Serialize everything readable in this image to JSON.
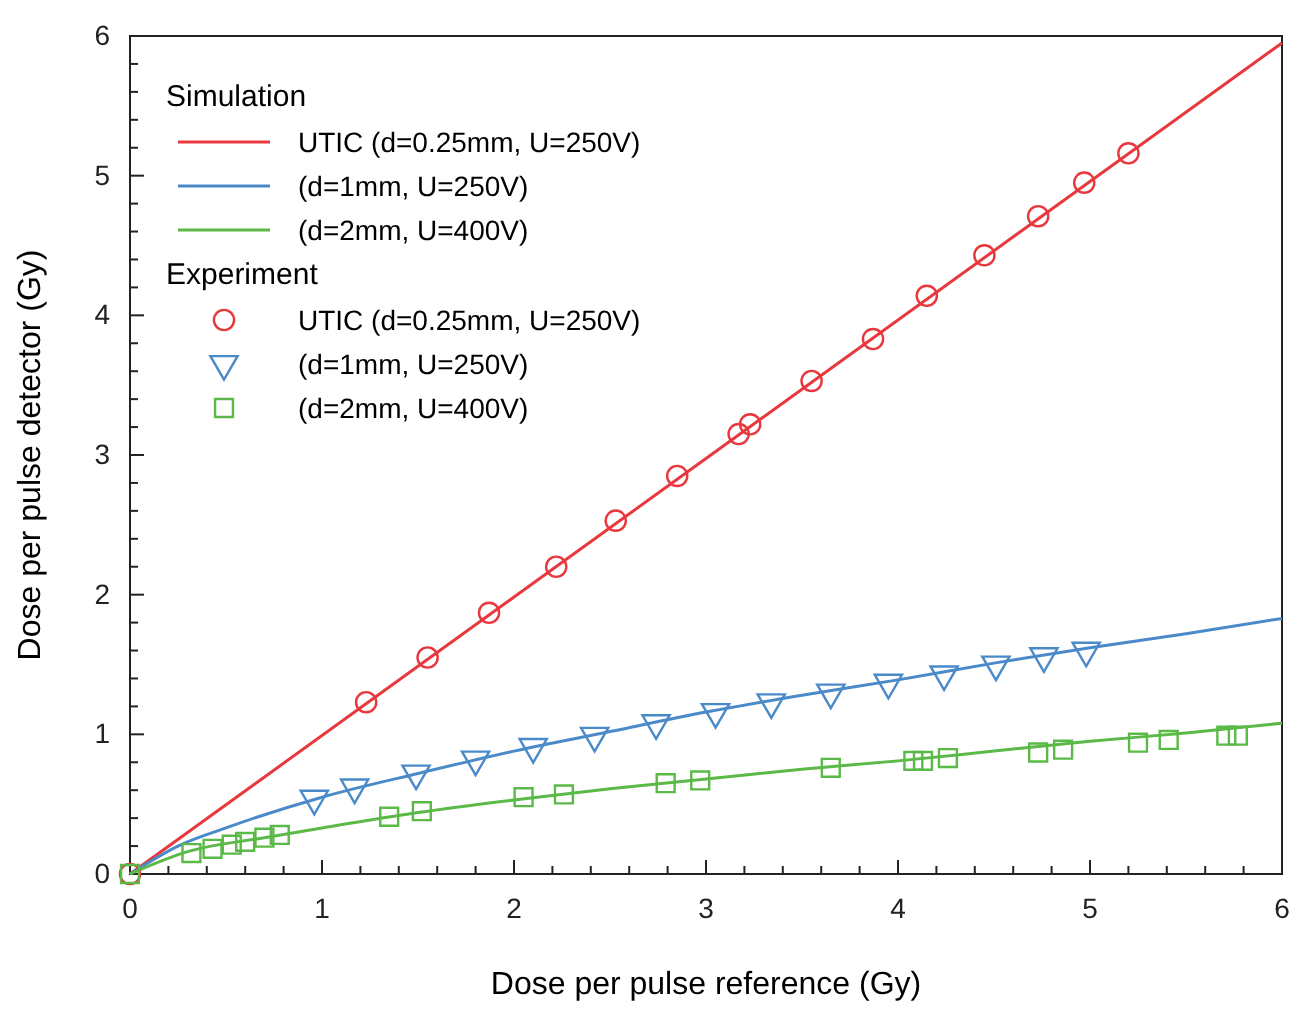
{
  "chart_data": {
    "type": "line",
    "xlabel": "Dose per pulse reference (Gy)",
    "ylabel": "Dose per pulse detector (Gy)",
    "legend_title": "Simulation",
    "annotations": [
      "Experiment"
    ],
    "xlim": [
      0,
      6
    ],
    "ylim": [
      0,
      6
    ],
    "xticks": [
      0,
      1,
      2,
      3,
      4,
      5,
      6
    ],
    "yticks": [
      0,
      1,
      2,
      3,
      4,
      5,
      6
    ],
    "grid": false,
    "legend": "top left",
    "series": [
      {
        "name": "UTIC (d=0.25mm, U=250V)",
        "color": "#e8383d",
        "marker": "none",
        "x": [
          0,
          6
        ],
        "values": [
          0,
          5.95
        ]
      },
      {
        "name": "(d=1mm, U=250V)",
        "color": "#4a8ac9",
        "marker": "none",
        "x": [
          0,
          0.25,
          0.5,
          1,
          1.5,
          2,
          2.5,
          3,
          3.5,
          4,
          4.5,
          5,
          5.5,
          6
        ],
        "values": [
          0,
          0.2,
          0.33,
          0.55,
          0.72,
          0.88,
          1.02,
          1.16,
          1.28,
          1.39,
          1.51,
          1.62,
          1.72,
          1.83
        ]
      },
      {
        "name": "(d=2mm, U=400V)",
        "color": "#5ab947",
        "marker": "none",
        "x": [
          0,
          0.3,
          0.7,
          1,
          1.5,
          2,
          2.5,
          3,
          3.5,
          4,
          4.5,
          5,
          5.5,
          6
        ],
        "values": [
          0,
          0.16,
          0.26,
          0.33,
          0.44,
          0.53,
          0.61,
          0.68,
          0.75,
          0.81,
          0.88,
          0.95,
          1.01,
          1.08
        ]
      },
      {
        "name": "UTIC (d=0.25mm, U=250V)",
        "type": "scatter",
        "color": "#e8383d",
        "marker": "circle",
        "x": [
          0,
          1.23,
          1.55,
          1.87,
          2.22,
          2.53,
          2.85,
          3.17,
          3.23,
          3.55,
          3.87,
          4.15,
          4.45,
          4.73,
          4.97,
          5.2
        ],
        "values": [
          0,
          1.23,
          1.55,
          1.87,
          2.2,
          2.53,
          2.85,
          3.15,
          3.22,
          3.53,
          3.83,
          4.14,
          4.43,
          4.71,
          4.95,
          5.16
        ]
      },
      {
        "name": "(d=1mm, U=250V)",
        "type": "scatter",
        "color": "#4a8ac9",
        "marker": "triangle",
        "x": [
          0.96,
          1.17,
          1.49,
          1.8,
          2.1,
          2.42,
          2.74,
          3.05,
          3.34,
          3.65,
          3.95,
          4.24,
          4.51,
          4.76,
          4.98
        ],
        "values": [
          0.54,
          0.62,
          0.72,
          0.82,
          0.91,
          0.99,
          1.08,
          1.16,
          1.23,
          1.3,
          1.37,
          1.43,
          1.5,
          1.56,
          1.6
        ]
      },
      {
        "name": "(d=2mm, U=400V)",
        "type": "scatter",
        "color": "#5ab947",
        "marker": "square",
        "x": [
          0,
          0.32,
          0.43,
          0.53,
          0.6,
          0.7,
          0.78,
          1.35,
          1.52,
          2.05,
          2.26,
          2.79,
          2.97,
          3.65,
          4.08,
          4.13,
          4.26,
          4.73,
          4.86,
          5.25,
          5.41,
          5.71,
          5.77
        ],
        "values": [
          0,
          0.15,
          0.18,
          0.21,
          0.23,
          0.26,
          0.28,
          0.41,
          0.45,
          0.55,
          0.57,
          0.65,
          0.67,
          0.76,
          0.81,
          0.81,
          0.83,
          0.87,
          0.89,
          0.94,
          0.96,
          0.99,
          0.99
        ]
      }
    ]
  }
}
